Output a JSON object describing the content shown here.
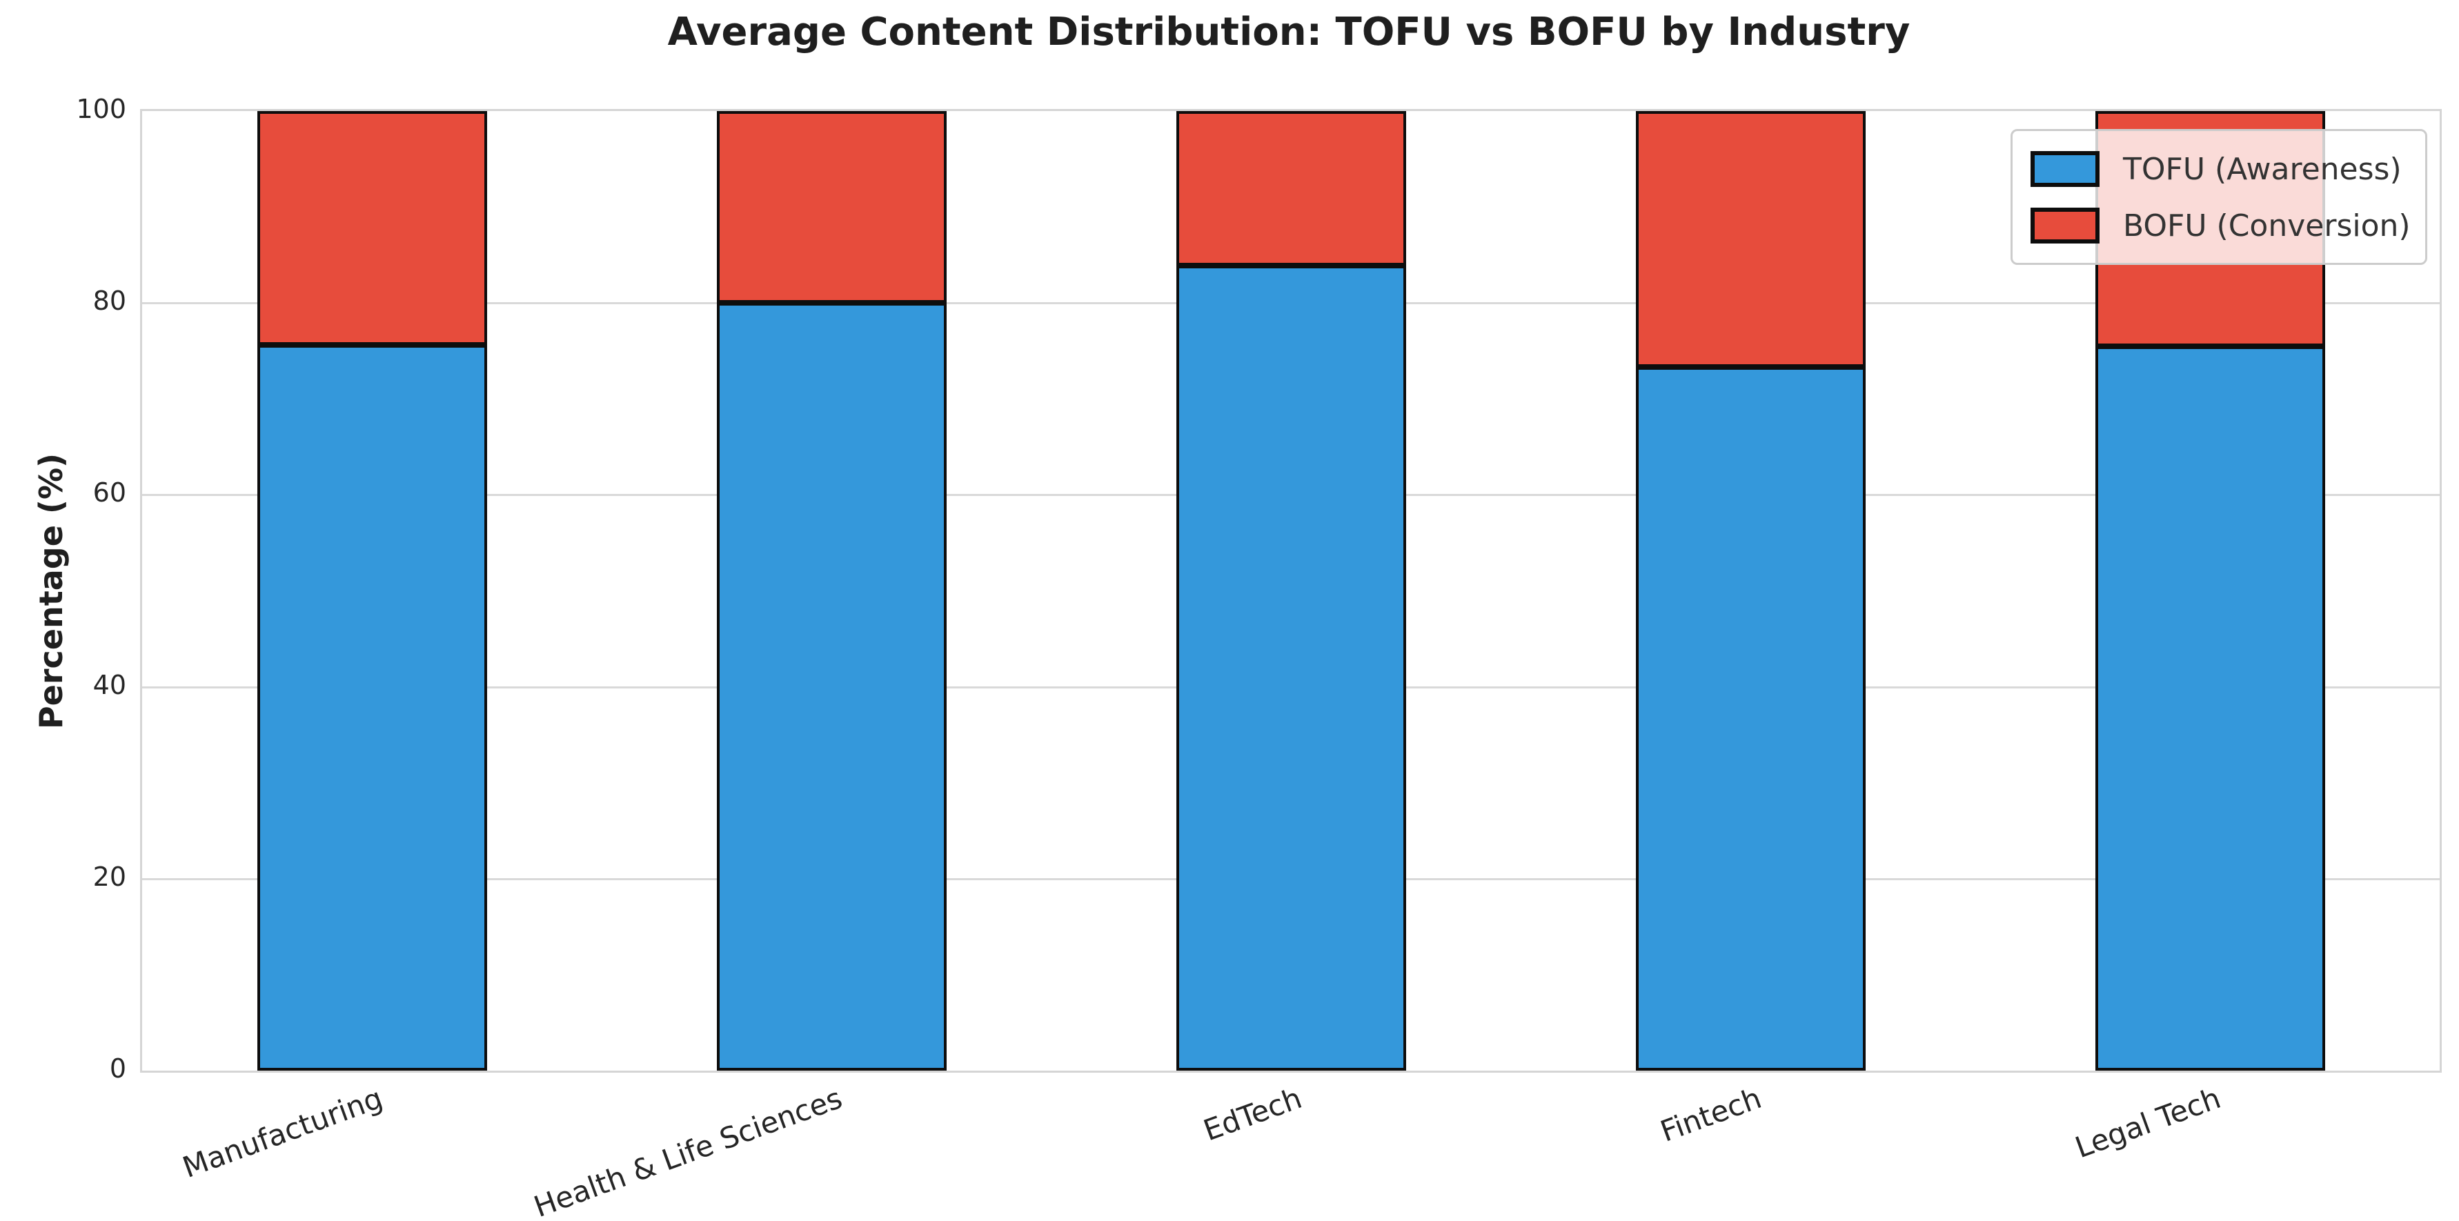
{
  "title": "Average Content Distribution: TOFU vs BOFU by Industry",
  "chart_data": {
    "type": "bar",
    "stacked": true,
    "title": "Average Content Distribution: TOFU vs BOFU by Industry",
    "xlabel": "",
    "ylabel": "Percentage (%)",
    "categories": [
      "Manufacturing",
      "Health & Life Sciences",
      "EdTech",
      "Fintech",
      "Legal Tech"
    ],
    "series": [
      {
        "name": "TOFU (Awareness)",
        "color": "#3498db",
        "values": [
          75.6,
          80.0,
          83.9,
          73.3,
          75.5
        ]
      },
      {
        "name": "BOFU (Conversion)",
        "color": "#e74c3c",
        "values": [
          24.4,
          20.0,
          16.1,
          26.7,
          24.5
        ]
      }
    ],
    "ylim": [
      0,
      100
    ],
    "yticks": [
      0,
      20,
      40,
      60,
      80,
      100
    ],
    "grid": true,
    "gridline_color": "#d9d9d9",
    "bar_edge_color": "#0d0d0d",
    "bar_width_fraction": 0.5,
    "x_tick_rotation_deg": 20,
    "legend_position": "upper right",
    "legend_border_color": "#cccccc",
    "text_color": "#262626",
    "background_color": "#ffffff"
  }
}
